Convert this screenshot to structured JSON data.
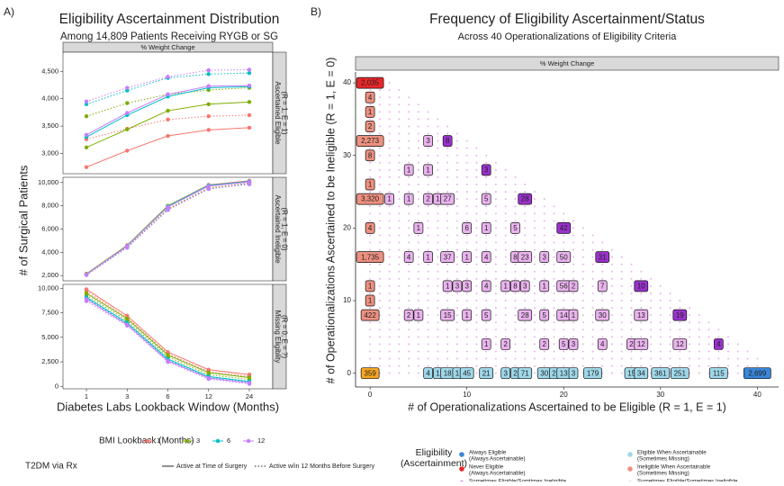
{
  "chart_data": [
    {
      "type": "line",
      "panel_label": "A)",
      "title": "Eligibility Ascertainment Distribution",
      "subtitle": "Among 14,809 Patients Receiving RYGB or SG",
      "top_strip": "% Weight Change",
      "xlabel": "Diabetes Labs Lookback Window (Months)",
      "ylabel": "# of Surgical Patients",
      "categories": [
        "1",
        "3",
        "6",
        "12",
        "24"
      ],
      "grid": false,
      "color_legend": {
        "title": "BMI Lookback (Months)",
        "labels": [
          "1",
          "3",
          "6",
          "12"
        ],
        "colors": [
          "#f8766d",
          "#7cae00",
          "#00bfc4",
          "#c77cff"
        ]
      },
      "linetype_legend": {
        "title": "T2DM via Rx",
        "labels": [
          "Active at Time of Surgery",
          "Active w/in 12 Months Before Surgery"
        ],
        "linetypes": [
          "solid",
          "dotted"
        ]
      },
      "facets": [
        {
          "strip": [
            "Ascertained Eligible",
            "(R = 1, E = 1)"
          ],
          "ylim": [
            2630,
            4850
          ],
          "yticks": [
            {
              "value": 3000,
              "label": "3,000"
            },
            {
              "value": 3500,
              "label": "3,500"
            },
            {
              "value": 4000,
              "label": "4,000"
            },
            {
              "value": 4500,
              "label": "4,500"
            }
          ],
          "series": [
            {
              "color": "#f8766d",
              "linetype": "solid",
              "values": [
                2750,
                3050,
                3320,
                3430,
                3470
              ]
            },
            {
              "color": "#f8766d",
              "linetype": "dotted",
              "values": [
                3260,
                3450,
                3620,
                3680,
                3700
              ]
            },
            {
              "color": "#7cae00",
              "linetype": "solid",
              "values": [
                3110,
                3440,
                3780,
                3900,
                3940
              ]
            },
            {
              "color": "#7cae00",
              "linetype": "dotted",
              "values": [
                3680,
                3920,
                4080,
                4160,
                4200
              ]
            },
            {
              "color": "#00bfc4",
              "linetype": "solid",
              "values": [
                3300,
                3700,
                4040,
                4200,
                4220
              ]
            },
            {
              "color": "#00bfc4",
              "linetype": "dotted",
              "values": [
                3900,
                4150,
                4380,
                4450,
                4470
              ]
            },
            {
              "color": "#c77cff",
              "linetype": "solid",
              "values": [
                3340,
                3740,
                4080,
                4230,
                4240
              ]
            },
            {
              "color": "#c77cff",
              "linetype": "dotted",
              "values": [
                3950,
                4200,
                4400,
                4520,
                4530
              ]
            }
          ]
        },
        {
          "strip": [
            "Ascertained Ineligible",
            "(R = 1, E = 0)"
          ],
          "ylim": [
            1550,
            10450
          ],
          "yticks": [
            {
              "value": 2000,
              "label": "2,000"
            },
            {
              "value": 4000,
              "label": "4,000"
            },
            {
              "value": 6000,
              "label": "6,000"
            },
            {
              "value": 8000,
              "label": "8,000"
            },
            {
              "value": 10000,
              "label": "10,000"
            }
          ],
          "series": [
            {
              "color": "#f8766d",
              "linetype": "solid",
              "values": [
                2150,
                4600,
                8000,
                9800,
                10150
              ]
            },
            {
              "color": "#f8766d",
              "linetype": "dotted",
              "values": [
                2100,
                4450,
                7750,
                9550,
                9950
              ]
            },
            {
              "color": "#7cae00",
              "linetype": "solid",
              "values": [
                2150,
                4600,
                8000,
                9750,
                10100
              ]
            },
            {
              "color": "#7cae00",
              "linetype": "dotted",
              "values": [
                2100,
                4450,
                7700,
                9500,
                9900
              ]
            },
            {
              "color": "#00bfc4",
              "linetype": "solid",
              "values": [
                2100,
                4550,
                7950,
                9750,
                10100
              ]
            },
            {
              "color": "#00bfc4",
              "linetype": "dotted",
              "values": [
                2050,
                4400,
                7650,
                9450,
                9900
              ]
            },
            {
              "color": "#c77cff",
              "linetype": "solid",
              "values": [
                2100,
                4550,
                7900,
                9700,
                10050
              ]
            },
            {
              "color": "#c77cff",
              "linetype": "dotted",
              "values": [
                2050,
                4400,
                7650,
                9450,
                9850
              ]
            }
          ]
        },
        {
          "strip": [
            "Missing Eligiblity",
            "(R = 0, E = ?)"
          ],
          "ylim": [
            -250,
            10400
          ],
          "yticks": [
            0,
            {
              "value": 2500,
              "label": "2,500"
            },
            {
              "value": 5000,
              "label": "5,000"
            },
            {
              "value": 7500,
              "label": "7,500"
            },
            {
              "value": 10000,
              "label": "10,000"
            }
          ],
          "series": [
            {
              "color": "#f8766d",
              "linetype": "solid",
              "values": [
                9900,
                7200,
                3500,
                1700,
                1200
              ]
            },
            {
              "color": "#f8766d",
              "linetype": "dotted",
              "values": [
                9700,
                7000,
                3300,
                1500,
                1000
              ]
            },
            {
              "color": "#7cae00",
              "linetype": "solid",
              "values": [
                9500,
                6900,
                3200,
                1400,
                900
              ]
            },
            {
              "color": "#7cae00",
              "linetype": "dotted",
              "values": [
                9300,
                6700,
                3000,
                1200,
                700
              ]
            },
            {
              "color": "#00bfc4",
              "linetype": "solid",
              "values": [
                9100,
                6500,
                2800,
                1000,
                500
              ]
            },
            {
              "color": "#00bfc4",
              "linetype": "dotted",
              "values": [
                9000,
                6400,
                2700,
                900,
                400
              ]
            },
            {
              "color": "#c77cff",
              "linetype": "solid",
              "values": [
                8900,
                6300,
                2600,
                850,
                350
              ]
            },
            {
              "color": "#c77cff",
              "linetype": "dotted",
              "values": [
                8700,
                6200,
                2500,
                750,
                250
              ]
            }
          ]
        }
      ]
    },
    {
      "type": "scatter",
      "panel_label": "B)",
      "title": "Frequency of Eligibility Ascertainment/Status",
      "subtitle": "Across 40 Operationalizations of Eligibility Criteria",
      "top_strip": "% Weight Change",
      "xlabel": "# of Operationalizations Ascertained to be Eligible (R = 1, E = 1)",
      "ylabel": "# of Operationalizations Ascertained to be Ineligible (R = 1, E = 0)",
      "xlim": [
        -1.5,
        42.2
      ],
      "ylim": [
        -1.9,
        41.5
      ],
      "xticks": [
        0,
        10,
        20,
        30,
        40
      ],
      "yticks": [
        0,
        10,
        20,
        30,
        40
      ],
      "grid": false,
      "background_dot_color": "#eab3ee",
      "legend": {
        "title": [
          "Eligibility",
          "(Ascertainment)"
        ],
        "entries": [
          {
            "lines": [
              "Always Eligible",
              "(Always Ascertainable)"
            ],
            "color": "#3a86d8"
          },
          {
            "lines": [
              "Never Eligible",
              "(Always Ascertainable)"
            ],
            "color": "#e8262a"
          },
          {
            "lines": [
              "Sometimes Eligible/Somtimes Ineligible",
              "(Always Ascertainable)"
            ],
            "color": "#9a32cd"
          },
          {
            "lines": [
              "Never Ascertainable"
            ],
            "color": "#f5a623"
          },
          {
            "lines": [
              "Eligible When Ascertainable",
              "(Sometimes Missing)"
            ],
            "color": "#9fd8ea"
          },
          {
            "lines": [
              "Ineligible When Ascertainable",
              "(Sometimes Missing)"
            ],
            "color": "#ee9080"
          },
          {
            "lines": [
              "Sometimes Eligible/Sometimes Ineligible",
              "(Sometimes Missing)"
            ],
            "color": "#eab3ee"
          }
        ]
      },
      "x": [
        0,
        0,
        0,
        0,
        0,
        0,
        0,
        0,
        0,
        0,
        0,
        0,
        0,
        0,
        6,
        7,
        8,
        9,
        10,
        12,
        14,
        15,
        16,
        18,
        19,
        20,
        21,
        23,
        27,
        28,
        30,
        32,
        36,
        40,
        6,
        8,
        4,
        6,
        12,
        2,
        4,
        6,
        7,
        8,
        12,
        16,
        5,
        10,
        12,
        15,
        20,
        4,
        6,
        8,
        10,
        12,
        15,
        16,
        18,
        20,
        24,
        8,
        9,
        10,
        12,
        14,
        15,
        16,
        18,
        20,
        21,
        24,
        28,
        4,
        5,
        8,
        10,
        12,
        16,
        18,
        20,
        21,
        24,
        28,
        32,
        12,
        14,
        18,
        20,
        21,
        24,
        27,
        28,
        32,
        36
      ],
      "y": [
        40,
        38,
        36,
        34,
        32,
        30,
        26,
        24,
        20,
        16,
        12,
        10,
        8,
        0,
        0,
        0,
        0,
        0,
        0,
        0,
        0,
        0,
        0,
        0,
        0,
        0,
        0,
        0,
        0,
        0,
        0,
        0,
        0,
        0,
        32,
        32,
        28,
        28,
        28,
        24,
        24,
        24,
        24,
        24,
        24,
        24,
        20,
        20,
        20,
        20,
        20,
        16,
        16,
        16,
        16,
        16,
        16,
        16,
        16,
        16,
        16,
        12,
        12,
        12,
        12,
        12,
        12,
        12,
        12,
        12,
        12,
        12,
        12,
        8,
        8,
        8,
        8,
        8,
        8,
        8,
        8,
        8,
        8,
        8,
        8,
        4,
        4,
        4,
        4,
        4,
        4,
        4,
        4,
        4,
        4
      ],
      "values": [
        2035,
        4,
        1,
        2,
        2273,
        8,
        1,
        3320,
        4,
        1735,
        1,
        1,
        422,
        359,
        4,
        1,
        18,
        1,
        45,
        21,
        3,
        2,
        71,
        30,
        2,
        13,
        3,
        179,
        15,
        34,
        361,
        251,
        115,
        2699,
        3,
        8,
        1,
        1,
        3,
        1,
        1,
        2,
        1,
        27,
        5,
        28,
        1,
        6,
        1,
        5,
        42,
        4,
        1,
        37,
        1,
        4,
        8,
        23,
        3,
        50,
        31,
        1,
        3,
        3,
        4,
        1,
        8,
        3,
        1,
        56,
        2,
        7,
        10,
        2,
        1,
        15,
        1,
        5,
        28,
        5,
        14,
        1,
        30,
        13,
        19,
        1,
        2,
        2,
        5,
        3,
        4,
        2,
        12,
        12,
        4
      ],
      "value_labels": [
        "2,035",
        "4",
        "1",
        "2",
        "2,273",
        "8",
        "1",
        "3,320",
        "4",
        "1,735",
        "1",
        "1",
        "422",
        "359",
        "4",
        "1",
        "18",
        "1",
        "45",
        "21",
        "3",
        "2",
        "71",
        "30",
        "2",
        "13",
        "3",
        "179",
        "15",
        "34",
        "361",
        "251",
        "115",
        "2,699",
        "3",
        "8",
        "1",
        "1",
        "3",
        "1",
        "1",
        "2",
        "1",
        "27",
        "5",
        "28",
        "1",
        "6",
        "1",
        "5",
        "42",
        "4",
        "1",
        "37",
        "1",
        "4",
        "8",
        "23",
        "3",
        "50",
        "31",
        "1",
        "3",
        "3",
        "4",
        "1",
        "8",
        "3",
        "1",
        "56",
        "2",
        "7",
        "10",
        "2",
        "1",
        "15",
        "1",
        "5",
        "28",
        "5",
        "14",
        "1",
        "30",
        "13",
        "19",
        "1",
        "2",
        "2",
        "5",
        "3",
        "4",
        "2",
        "12",
        "12",
        "4"
      ],
      "groups": [
        1,
        5,
        5,
        5,
        5,
        5,
        5,
        5,
        5,
        5,
        5,
        5,
        5,
        3,
        4,
        4,
        4,
        4,
        4,
        4,
        4,
        4,
        4,
        4,
        4,
        4,
        4,
        4,
        4,
        4,
        4,
        4,
        4,
        0,
        6,
        2,
        6,
        6,
        2,
        6,
        6,
        6,
        6,
        6,
        6,
        2,
        6,
        6,
        6,
        6,
        2,
        6,
        6,
        6,
        6,
        6,
        6,
        6,
        6,
        6,
        2,
        6,
        6,
        6,
        6,
        6,
        6,
        6,
        6,
        6,
        6,
        6,
        2,
        6,
        6,
        6,
        6,
        6,
        6,
        6,
        6,
        6,
        6,
        6,
        2,
        6,
        6,
        6,
        6,
        6,
        6,
        6,
        6,
        6,
        2
      ]
    }
  ]
}
